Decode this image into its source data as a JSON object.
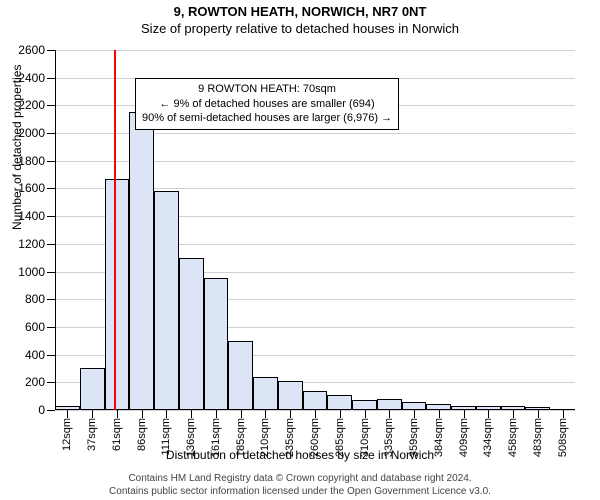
{
  "titles": {
    "line1": "9, ROWTON HEATH, NORWICH, NR7 0NT",
    "line2": "Size of property relative to detached houses in Norwich"
  },
  "chart": {
    "type": "histogram",
    "y_axis_label": "Number of detached properties",
    "x_axis_label": "Distribution of detached houses by size in Norwich",
    "ylim": [
      0,
      2600
    ],
    "ytick_step": 200,
    "grid_color": "#d0d0d0",
    "axis_color": "#000000",
    "bar_fill": "#dce5f5",
    "bar_border": "#000000",
    "background": "#ffffff",
    "categories": [
      "12sqm",
      "37sqm",
      "61sqm",
      "86sqm",
      "111sqm",
      "136sqm",
      "161sqm",
      "185sqm",
      "210sqm",
      "235sqm",
      "260sqm",
      "285sqm",
      "310sqm",
      "335sqm",
      "359sqm",
      "384sqm",
      "409sqm",
      "434sqm",
      "458sqm",
      "483sqm",
      "508sqm"
    ],
    "values": [
      30,
      300,
      1670,
      2150,
      1580,
      1100,
      950,
      500,
      240,
      210,
      140,
      110,
      70,
      80,
      60,
      40,
      30,
      30,
      30,
      20,
      0
    ],
    "vline_at_index": 2.4,
    "vline_color": "#ff0000"
  },
  "annotation": {
    "line1": "9 ROWTON HEATH: 70sqm",
    "line2": "← 9% of detached houses are smaller (694)",
    "line3": "90% of semi-detached houses are larger (6,976) →"
  },
  "footer": {
    "line1": "Contains HM Land Registry data © Crown copyright and database right 2024.",
    "line2": "Contains public sector information licensed under the Open Government Licence v3.0."
  }
}
